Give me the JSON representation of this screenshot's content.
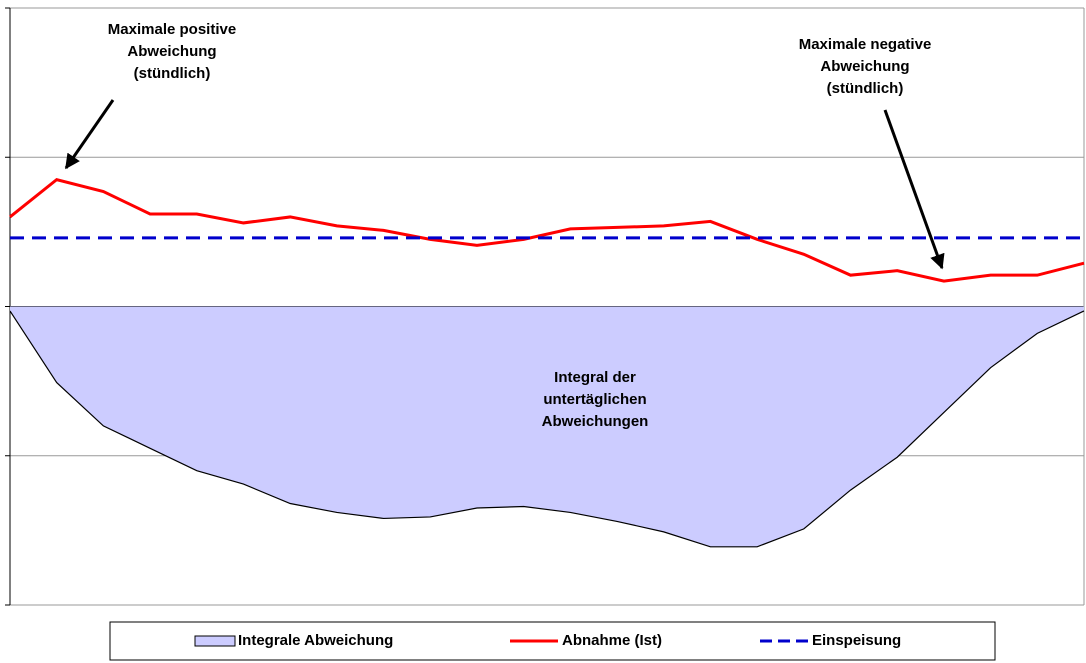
{
  "chart_data": {
    "type": "line",
    "x": [
      0,
      1,
      2,
      3,
      4,
      5,
      6,
      7,
      8,
      9,
      10,
      11,
      12,
      13,
      14,
      15,
      16,
      17,
      18,
      19,
      20,
      21,
      22,
      23
    ],
    "xlim": [
      0,
      23
    ],
    "ylim": [
      -2,
      2
    ],
    "yticks": [
      -2,
      -1,
      0,
      1,
      2
    ],
    "grid": true,
    "series": [
      {
        "name": "Integrale Abweichung",
        "type": "area",
        "color": "#ccccff",
        "values": [
          -0.03,
          -0.51,
          -0.8,
          -0.95,
          -1.1,
          -1.19,
          -1.32,
          -1.38,
          -1.42,
          -1.41,
          -1.35,
          -1.34,
          -1.38,
          -1.44,
          -1.51,
          -1.61,
          -1.61,
          -1.49,
          -1.23,
          -1.01,
          -0.71,
          -0.41,
          -0.18,
          -0.03
        ]
      },
      {
        "name": "Abnahme (Ist)",
        "type": "line",
        "color": "#ff0000",
        "values": [
          0.6,
          0.85,
          0.77,
          0.62,
          0.62,
          0.56,
          0.6,
          0.54,
          0.51,
          0.45,
          0.41,
          0.45,
          0.52,
          0.53,
          0.54,
          0.57,
          0.45,
          0.35,
          0.21,
          0.24,
          0.17,
          0.21,
          0.21,
          0.29
        ]
      },
      {
        "name": "Einspeisung",
        "type": "line",
        "dashed": true,
        "color": "#0000cc",
        "values": [
          0.46,
          0.46,
          0.46,
          0.46,
          0.46,
          0.46,
          0.46,
          0.46,
          0.46,
          0.46,
          0.46,
          0.46,
          0.46,
          0.46,
          0.46,
          0.46,
          0.46,
          0.46,
          0.46,
          0.46,
          0.46,
          0.46,
          0.46,
          0.46
        ]
      }
    ],
    "annotations": [
      {
        "lines": [
          "Maximale positive",
          "Abweichung",
          "(stündlich)"
        ]
      },
      {
        "lines": [
          "Maximale negative",
          "Abweichung",
          "(stündlich)"
        ]
      },
      {
        "lines": [
          "Integral der",
          "untertäglichen",
          "Abweichungen"
        ]
      }
    ],
    "legend": "bottom"
  }
}
